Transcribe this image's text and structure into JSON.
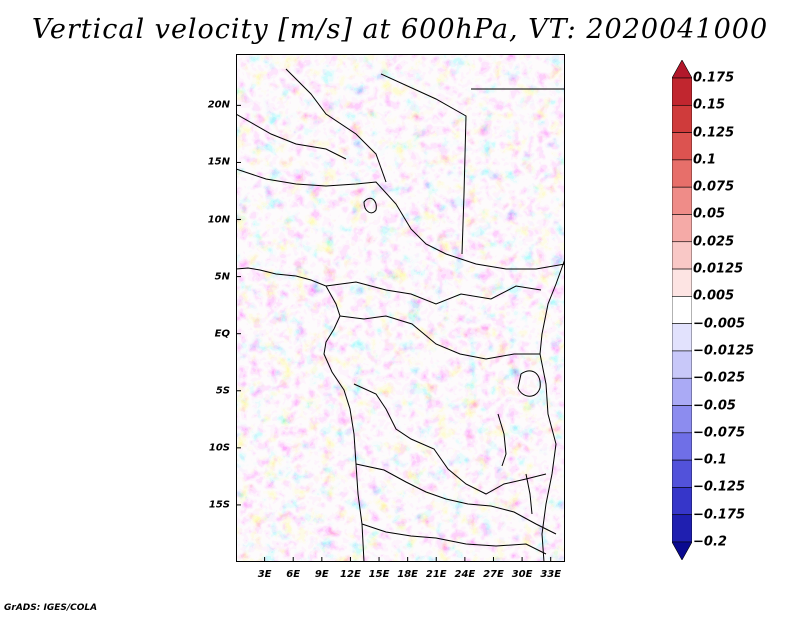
{
  "title": "Vertical velocity [m/s] at 600hPa, VT: 2020041000",
  "credit": "GrADS: IGES/COLA",
  "map": {
    "lat_labels": [
      "20N",
      "15N",
      "10N",
      "5N",
      "EQ",
      "5S",
      "10S",
      "15S"
    ],
    "lat_values": [
      20,
      15,
      10,
      5,
      0,
      -5,
      -10,
      -15
    ],
    "lon_labels": [
      "3E",
      "6E",
      "9E",
      "12E",
      "15E",
      "18E",
      "21E",
      "24E",
      "27E",
      "30E",
      "33E"
    ],
    "lon_values": [
      3,
      6,
      9,
      12,
      15,
      18,
      21,
      24,
      27,
      30,
      33
    ],
    "lat_range": [
      -20,
      24.5
    ],
    "lon_range": [
      0,
      34.5
    ]
  },
  "colorbar": {
    "labels": [
      "0.175",
      "0.15",
      "0.125",
      "0.1",
      "0.075",
      "0.05",
      "0.025",
      "0.0125",
      "0.005",
      "−0.005",
      "−0.0125",
      "−0.025",
      "−0.05",
      "−0.075",
      "−0.1",
      "−0.125",
      "−0.175",
      "−0.2"
    ],
    "colors": [
      "#b2182b",
      "#c1262f",
      "#cf3b3b",
      "#dc5350",
      "#e76f6a",
      "#ef8c88",
      "#f5aaa7",
      "#f9c8c6",
      "#fde4e3",
      "#ffffff",
      "#e2e2fd",
      "#c8c8f9",
      "#aaaaf5",
      "#8c8cef",
      "#6f6fe7",
      "#5252da",
      "#3636c9",
      "#1f1fb0",
      "#0a0a90"
    ]
  },
  "field_colors": {
    "land_neutral": "#f4ecf4",
    "ocean_neutral": "#f3e6ee",
    "border": "#000000"
  }
}
